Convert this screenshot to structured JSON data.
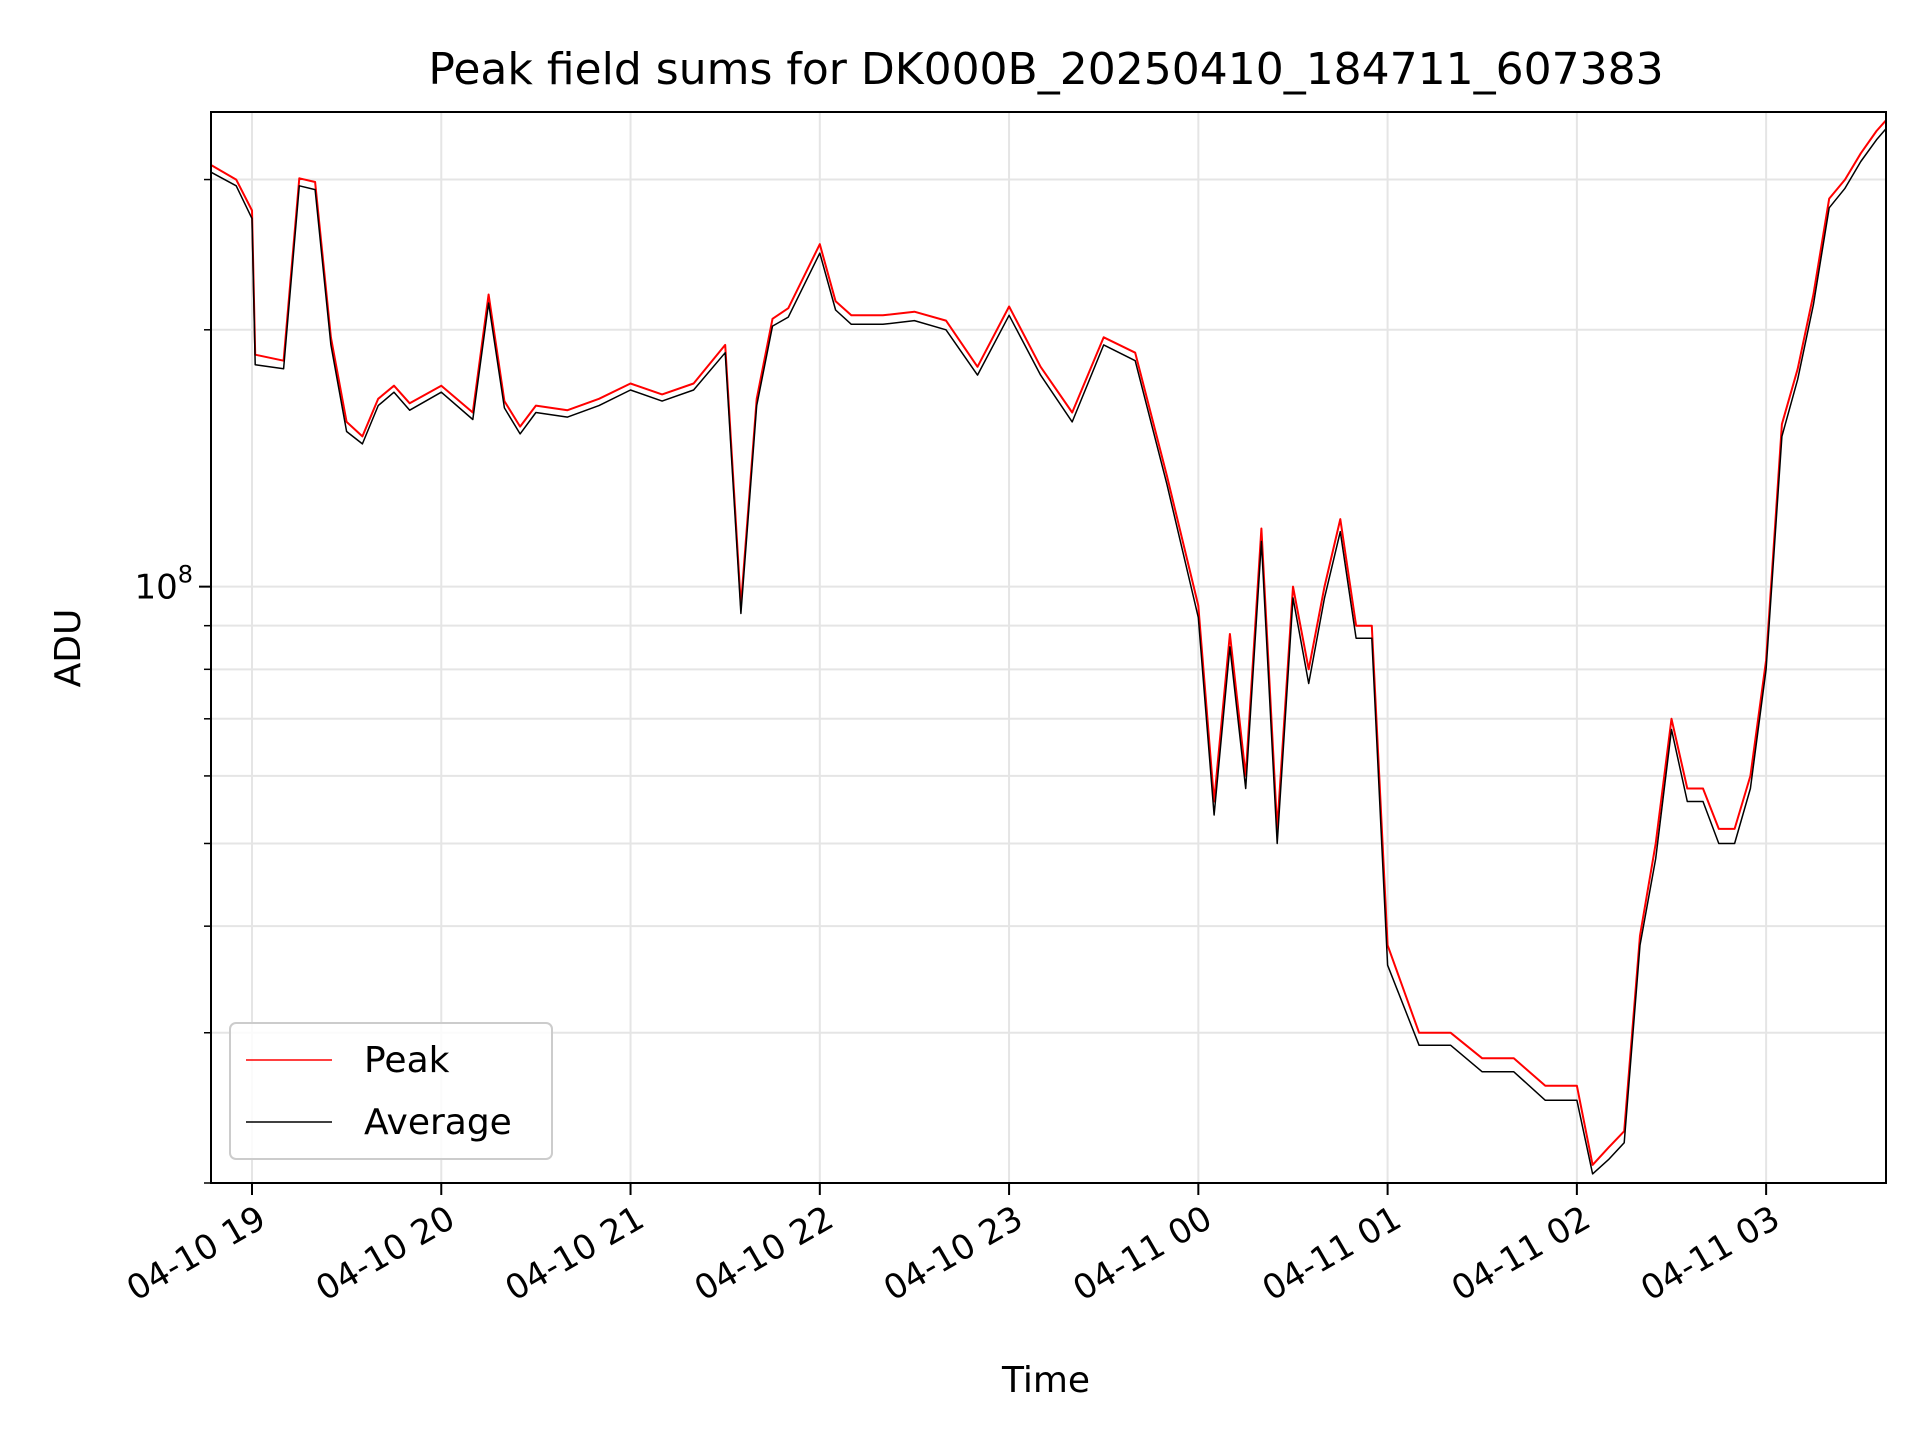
{
  "chart_data": {
    "type": "line",
    "title": "Peak field sums for DK000B_20250410_184711_607383",
    "xlabel": "Time",
    "ylabel": "ADU",
    "y_scale": "log",
    "ylim": [
      20000000,
      360000000
    ],
    "xlim": [
      "04-10 18:47",
      "04-11 03:38"
    ],
    "grid": true,
    "legend_position": "lower-left",
    "x_ticks": [
      "04-10 19",
      "04-10 20",
      "04-10 21",
      "04-10 22",
      "04-10 23",
      "04-11 00",
      "04-11 01",
      "04-11 02",
      "04-11 03"
    ],
    "y_tick_labels": [
      {
        "value": 100000000,
        "base": "10",
        "exponent": "8"
      }
    ],
    "x": [
      "04-10 18:47",
      "04-10 18:55",
      "04-10 19:00",
      "04-10 19:01",
      "04-10 19:10",
      "04-10 19:15",
      "04-10 19:20",
      "04-10 19:25",
      "04-10 19:30",
      "04-10 19:35",
      "04-10 19:40",
      "04-10 19:45",
      "04-10 19:50",
      "04-10 20:00",
      "04-10 20:10",
      "04-10 20:15",
      "04-10 20:20",
      "04-10 20:25",
      "04-10 20:30",
      "04-10 20:40",
      "04-10 20:50",
      "04-10 21:00",
      "04-10 21:10",
      "04-10 21:20",
      "04-10 21:30",
      "04-10 21:35",
      "04-10 21:40",
      "04-10 21:45",
      "04-10 21:50",
      "04-10 22:00",
      "04-10 22:05",
      "04-10 22:10",
      "04-10 22:20",
      "04-10 22:30",
      "04-10 22:40",
      "04-10 22:50",
      "04-10 23:00",
      "04-10 23:10",
      "04-10 23:20",
      "04-10 23:30",
      "04-10 23:40",
      "04-10 23:50",
      "04-11 00:00",
      "04-11 00:05",
      "04-11 00:10",
      "04-11 00:15",
      "04-11 00:20",
      "04-11 00:25",
      "04-11 00:30",
      "04-11 00:35",
      "04-11 00:40",
      "04-11 00:45",
      "04-11 00:50",
      "04-11 00:55",
      "04-11 01:00",
      "04-11 01:10",
      "04-11 01:20",
      "04-11 01:30",
      "04-11 01:40",
      "04-11 01:50",
      "04-11 02:00",
      "04-11 02:05",
      "04-11 02:10",
      "04-11 02:15",
      "04-11 02:20",
      "04-11 02:25",
      "04-11 02:30",
      "04-11 02:35",
      "04-11 02:40",
      "04-11 02:45",
      "04-11 02:50",
      "04-11 02:55",
      "04-11 03:00",
      "04-11 03:05",
      "04-11 03:10",
      "04-11 03:15",
      "04-11 03:20",
      "04-11 03:25",
      "04-11 03:30",
      "04-11 03:35",
      "04-11 03:38"
    ],
    "series": [
      {
        "name": "Peak",
        "color": "#ff0000",
        "values": [
          312000000,
          300000000,
          276000000,
          187000000,
          184000000,
          301000000,
          298000000,
          196000000,
          156000000,
          150000000,
          166000000,
          172000000,
          164000000,
          172000000,
          160000000,
          220000000,
          165000000,
          154000000,
          163000000,
          161000000,
          166000000,
          173000000,
          168000000,
          173000000,
          192000000,
          95000000,
          166000000,
          206000000,
          212000000,
          252000000,
          216000000,
          208000000,
          208000000,
          210000000,
          205000000,
          181000000,
          213000000,
          181000000,
          160000000,
          196000000,
          188000000,
          135000000,
          95000000,
          56000000,
          88000000,
          60000000,
          117000000,
          52000000,
          100000000,
          80000000,
          100000000,
          120000000,
          90000000,
          90000000,
          38000000,
          30000000,
          30000000,
          28000000,
          28000000,
          26000000,
          26000000,
          21000000,
          22000000,
          23000000,
          39000000,
          50000000,
          70000000,
          58000000,
          58000000,
          52000000,
          52000000,
          60000000,
          82000000,
          155000000,
          180000000,
          220000000,
          285000000,
          300000000,
          322000000,
          342000000,
          352000000
        ]
      },
      {
        "name": "Average",
        "color": "#000000",
        "values": [
          306000000,
          295000000,
          270000000,
          182000000,
          180000000,
          295000000,
          292000000,
          192000000,
          152000000,
          147000000,
          163000000,
          169000000,
          161000000,
          169000000,
          157000000,
          215000000,
          162000000,
          151000000,
          160000000,
          158000000,
          163000000,
          170000000,
          165000000,
          170000000,
          188000000,
          93000000,
          163000000,
          202000000,
          207000000,
          246000000,
          211000000,
          203000000,
          203000000,
          205000000,
          200000000,
          177000000,
          208000000,
          177000000,
          156000000,
          192000000,
          184000000,
          132000000,
          92000000,
          54000000,
          85000000,
          58000000,
          113000000,
          50000000,
          97000000,
          77000000,
          97000000,
          116000000,
          87000000,
          87000000,
          36000000,
          29000000,
          29000000,
          27000000,
          27000000,
          25000000,
          25000000,
          20500000,
          21300000,
          22300000,
          38000000,
          48000000,
          68000000,
          56000000,
          56000000,
          50000000,
          50000000,
          58000000,
          80000000,
          150000000,
          175000000,
          214000000,
          278000000,
          293000000,
          315000000,
          334000000,
          344000000
        ]
      }
    ]
  }
}
